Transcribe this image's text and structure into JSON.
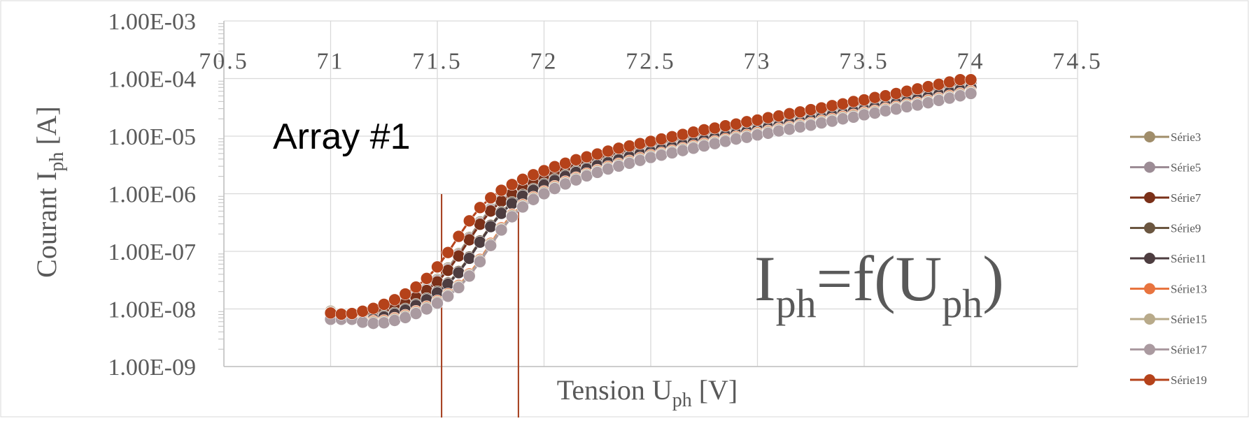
{
  "chart_data": {
    "type": "line",
    "xlabel": "Tension U",
    "xlabel_sub": "ph",
    "xlabel_unit": " [V]",
    "ylabel": "Courant I",
    "ylabel_sub": "ph",
    "ylabel_unit": " [A]",
    "y_scale": "log",
    "ylim": [
      1e-09,
      0.001
    ],
    "xlim": [
      70.5,
      74.5
    ],
    "x_ticks": [
      "70.5",
      "71",
      "71.5",
      "72",
      "72.5",
      "73",
      "73.5",
      "74",
      "74.5"
    ],
    "y_ticks": [
      "1.00E-03",
      "1.00E-04",
      "1.00E-05",
      "1.00E-06",
      "1.00E-07",
      "1.00E-08",
      "1.00E-09"
    ],
    "grid": true,
    "legend_position": "right",
    "annotations": {
      "array_label": "Array #1",
      "formula_main": "I",
      "formula_sub1": "ph",
      "formula_mid": "=f(U",
      "formula_sub2": "ph",
      "formula_end": ")"
    },
    "vertical_markers": [
      71.52,
      71.88
    ],
    "x": [
      71.0,
      71.05,
      71.1,
      71.15,
      71.2,
      71.25,
      71.3,
      71.35,
      71.4,
      71.45,
      71.5,
      71.55,
      71.6,
      71.65,
      71.7,
      71.75,
      71.8,
      71.85,
      71.9,
      71.95,
      72.0,
      72.05,
      72.1,
      72.15,
      72.2,
      72.25,
      72.3,
      72.35,
      72.4,
      72.45,
      72.5,
      72.55,
      72.6,
      72.65,
      72.7,
      72.75,
      72.8,
      72.85,
      72.9,
      72.95,
      73.0,
      73.05,
      73.1,
      73.15,
      73.2,
      73.25,
      73.3,
      73.35,
      73.4,
      73.45,
      73.5,
      73.55,
      73.6,
      73.65,
      73.7,
      73.75,
      73.8,
      73.85,
      73.9,
      73.95,
      74.0
    ],
    "series_log10_offsets": [
      0.06,
      0.04,
      0.02,
      0.0,
      -0.02,
      -0.04,
      -0.06,
      -0.08,
      0.08
    ],
    "series_x_shifts": [
      0.0,
      0.02,
      -0.02,
      0.04,
      0.06,
      0.08,
      0.1,
      0.12,
      -0.04
    ],
    "series": [
      {
        "name": "Série3",
        "color": "#a08d6a"
      },
      {
        "name": "Série5",
        "color": "#9c8c95"
      },
      {
        "name": "Série7",
        "color": "#7a3018"
      },
      {
        "name": "Série9",
        "color": "#6b5640"
      },
      {
        "name": "Série11",
        "color": "#4d3d40"
      },
      {
        "name": "Série13",
        "color": "#e8743f"
      },
      {
        "name": "Série15",
        "color": "#b8aa8a"
      },
      {
        "name": "Série17",
        "color": "#aa9aa0"
      },
      {
        "name": "Série19",
        "color": "#b5421a"
      }
    ],
    "reference_curve_log10": [
      -8.1,
      -8.15,
      -8.17,
      -8.16,
      -8.12,
      -8.07,
      -8.0,
      -7.92,
      -7.82,
      -7.7,
      -7.55,
      -7.35,
      -7.1,
      -6.82,
      -6.55,
      -6.32,
      -6.15,
      -6.02,
      -5.92,
      -5.83,
      -5.75,
      -5.68,
      -5.61,
      -5.55,
      -5.49,
      -5.44,
      -5.39,
      -5.34,
      -5.29,
      -5.25,
      -5.21,
      -5.17,
      -5.13,
      -5.09,
      -5.05,
      -5.01,
      -4.97,
      -4.94,
      -4.9,
      -4.87,
      -4.83,
      -4.8,
      -4.76,
      -4.73,
      -4.69,
      -4.66,
      -4.62,
      -4.59,
      -4.55,
      -4.52,
      -4.48,
      -4.45,
      -4.41,
      -4.38,
      -4.34,
      -4.3,
      -4.26,
      -4.22,
      -4.18,
      -4.14,
      -4.1
    ]
  }
}
